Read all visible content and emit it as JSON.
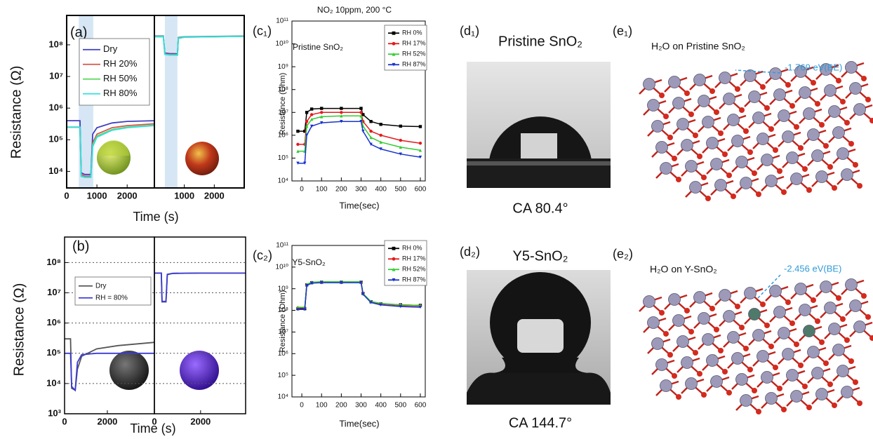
{
  "chart_data": [
    {
      "type": "line",
      "label": "(a)",
      "ylabel": "Resistance (Ω)",
      "xlabel": "Time (s)",
      "log_y": true,
      "ylim": [
        3000,
        850000000
      ],
      "yticks": [
        {
          "value": 10000,
          "label": "10⁴"
        },
        {
          "value": 100000,
          "label": "10⁵"
        },
        {
          "value": 1000000,
          "label": "10⁶"
        },
        {
          "value": 10000000,
          "label": "10⁷"
        },
        {
          "value": 100000000,
          "label": "10⁸"
        }
      ],
      "grid": false,
      "legend": "upper left",
      "series": [
        {
          "name": "Dry",
          "color": "#3f3fbf"
        },
        {
          "name": "RH 20%",
          "color": "#d9534f"
        },
        {
          "name": "RH 50%",
          "color": "#5cd65c"
        },
        {
          "name": "RH 80%",
          "color": "#33e0e0"
        }
      ],
      "subplots": [
        {
          "xlim": [
            0,
            2900
          ],
          "xticks": [
            0,
            1000,
            2000
          ],
          "shade": [
            400,
            880
          ],
          "x": [
            0,
            440,
            480,
            600,
            800,
            860,
            1000,
            1500,
            2000,
            2900
          ],
          "series": [
            {
              "values": [
                400000,
                400000,
                9000,
                8000,
                8000,
                150000,
                240000,
                340000,
                380000,
                400000
              ]
            },
            {
              "values": [
                250000,
                250000,
                8000,
                7000,
                7000,
                80000,
                150000,
                240000,
                280000,
                320000
              ]
            },
            {
              "values": [
                250000,
                250000,
                7000,
                6500,
                6500,
                70000,
                130000,
                210000,
                250000,
                290000
              ]
            },
            {
              "values": [
                250000,
                250000,
                7000,
                6500,
                6500,
                60000,
                120000,
                200000,
                240000,
                280000
              ]
            }
          ]
        },
        {
          "xlim": [
            0,
            3000
          ],
          "xticks": [
            1000,
            2000
          ],
          "shade": [
            350,
            770
          ],
          "x": [
            0,
            300,
            350,
            500,
            770,
            800,
            1000,
            2000,
            3000
          ],
          "series": [
            {
              "values": [
                190000000,
                190000000,
                55000000,
                53000000,
                52000000,
                170000000,
                180000000,
                185000000,
                190000000
              ]
            },
            {
              "values": [
                180000000,
                180000000,
                52000000,
                50000000,
                50000000,
                160000000,
                175000000,
                180000000,
                185000000
              ]
            },
            {
              "values": [
                185000000,
                185000000,
                50000000,
                48000000,
                48000000,
                165000000,
                178000000,
                182000000,
                188000000
              ]
            },
            {
              "values": [
                180000000,
                180000000,
                50000000,
                48000000,
                47000000,
                160000000,
                175000000,
                180000000,
                185000000
              ]
            }
          ]
        }
      ]
    },
    {
      "type": "line",
      "label": "(b)",
      "ylabel": "Resistance (Ω)",
      "xlabel": "Time (s)",
      "log_y": true,
      "ylim": [
        1000,
        700000000
      ],
      "yticks": [
        {
          "value": 1000,
          "label": "10³"
        },
        {
          "value": 10000,
          "label": "10⁴"
        },
        {
          "value": 100000,
          "label": "10⁵"
        },
        {
          "value": 1000000,
          "label": "10⁶"
        },
        {
          "value": 10000000,
          "label": "10⁷"
        },
        {
          "value": 100000000,
          "label": "10⁸"
        }
      ],
      "grid": true,
      "legend": "upper left",
      "series": [
        {
          "name": "Dry",
          "color": "#555555"
        },
        {
          "name": "RH = 80%",
          "color": "#3b3bd6"
        }
      ],
      "subplots": [
        {
          "xlim": [
            0,
            4200
          ],
          "xticks": [
            0,
            2000
          ],
          "x": [
            0,
            280,
            330,
            500,
            600,
            800,
            1500,
            2500,
            4200
          ],
          "series": [
            {
              "values": [
                300000,
                300000,
                7000,
                6000,
                30000,
                80000,
                140000,
                180000,
                230000
              ]
            },
            {
              "values": [
                100000,
                100000,
                8000,
                6000,
                50000,
                90000,
                100000,
                100000,
                100000
              ]
            }
          ]
        },
        {
          "xlim": [
            0,
            3950
          ],
          "xticks": [
            0,
            2000
          ],
          "x": [
            0,
            300,
            330,
            500,
            560,
            800,
            2000,
            3950
          ],
          "series": [
            {
              "values": [
                45000000,
                45000000,
                5000000,
                5000000,
                40000000,
                44000000,
                45000000,
                45000000
              ]
            },
            {
              "values": [
                45000000,
                45000000,
                5200000,
                5200000,
                41000000,
                44000000,
                45000000,
                45000000
              ]
            }
          ]
        }
      ]
    },
    {
      "type": "line",
      "label": "(c₁)",
      "title": "NO₂ 10ppm, 200 °C",
      "annotation": "Pristine SnO₂",
      "ylabel": "Resistance (Ohm)",
      "xlabel": "Time(sec)",
      "log_y": true,
      "markers": true,
      "ylim": [
        10000,
        100000000000
      ],
      "yticks": [
        {
          "value": 10000,
          "label": "10⁴"
        },
        {
          "value": 100000,
          "label": "10⁵"
        },
        {
          "value": 1000000,
          "label": "10⁶"
        },
        {
          "value": 10000000,
          "label": "10⁷"
        },
        {
          "value": 100000000,
          "label": "10⁸"
        },
        {
          "value": 1000000000,
          "label": "10⁹"
        },
        {
          "value": 10000000000,
          "label": "10¹⁰"
        },
        {
          "value": 100000000000,
          "label": "10¹¹"
        }
      ],
      "xlim": [
        -50,
        625
      ],
      "xticks": [
        0,
        100,
        200,
        300,
        400,
        500,
        600
      ],
      "grid": false,
      "legend": "upper right",
      "x": [
        -20,
        15,
        25,
        50,
        100,
        200,
        300,
        310,
        350,
        400,
        500,
        600
      ],
      "series": [
        {
          "name": "RH 0%",
          "color": "#000000",
          "marker": "square",
          "values": [
            1500000,
            1500000,
            10000000,
            14000000,
            15000000,
            15000000,
            15000000,
            8000000,
            4000000,
            3000000,
            2500000,
            2400000
          ]
        },
        {
          "name": "RH 17%",
          "color": "#e41a1c",
          "marker": "circle",
          "values": [
            400000,
            400000,
            4000000,
            8000000,
            10000000,
            10000000,
            10000000,
            4000000,
            1500000,
            1000000,
            600000,
            450000
          ]
        },
        {
          "name": "RH 52%",
          "color": "#33cc33",
          "marker": "triangle-up",
          "values": [
            200000,
            200000,
            2500000,
            5000000,
            6500000,
            7000000,
            7000000,
            2500000,
            800000,
            500000,
            300000,
            220000
          ]
        },
        {
          "name": "RH 87%",
          "color": "#1a33cc",
          "marker": "triangle-down",
          "values": [
            60000,
            60000,
            1000000,
            2500000,
            3500000,
            4000000,
            4000000,
            1500000,
            400000,
            250000,
            150000,
            110000
          ]
        }
      ]
    },
    {
      "type": "line",
      "label": "(c₂)",
      "annotation": "Y5-SnO₂",
      "ylabel": "Resistance (Ohm)",
      "xlabel": "Time(sec)",
      "log_y": true,
      "markers": true,
      "ylim": [
        10000,
        100000000000
      ],
      "yticks": [
        {
          "value": 10000,
          "label": "10⁴"
        },
        {
          "value": 100000,
          "label": "10⁵"
        },
        {
          "value": 1000000,
          "label": "10⁶"
        },
        {
          "value": 10000000,
          "label": "10⁷"
        },
        {
          "value": 100000000,
          "label": "10⁸"
        },
        {
          "value": 1000000000,
          "label": "10⁹"
        },
        {
          "value": 10000000000,
          "label": "10¹⁰"
        },
        {
          "value": 100000000000,
          "label": "10¹¹"
        }
      ],
      "xlim": [
        -50,
        625
      ],
      "xticks": [
        0,
        100,
        200,
        300,
        400,
        500,
        600
      ],
      "grid": false,
      "legend": "upper right",
      "x": [
        -20,
        15,
        25,
        50,
        100,
        200,
        300,
        310,
        350,
        400,
        500,
        600
      ],
      "series": [
        {
          "name": "RH 0%",
          "color": "#000000",
          "marker": "square",
          "values": [
            120000000,
            120000000,
            1500000000,
            1900000000,
            2000000000,
            2000000000,
            2000000000,
            600000000,
            250000000,
            200000000,
            180000000,
            170000000
          ]
        },
        {
          "name": "RH 17%",
          "color": "#e41a1c",
          "marker": "circle",
          "values": [
            130000000,
            130000000,
            1500000000,
            1900000000,
            2000000000,
            2000000000,
            2000000000,
            600000000,
            250000000,
            200000000,
            170000000,
            160000000
          ]
        },
        {
          "name": "RH 52%",
          "color": "#33cc33",
          "marker": "triangle-up",
          "values": [
            140000000,
            140000000,
            1600000000,
            2000000000,
            2100000000,
            2100000000,
            2100000000,
            600000000,
            260000000,
            210000000,
            180000000,
            170000000
          ]
        },
        {
          "name": "RH 87%",
          "color": "#1a33cc",
          "marker": "triangle-down",
          "values": [
            110000000,
            110000000,
            1400000000,
            1800000000,
            1900000000,
            1900000000,
            1900000000,
            550000000,
            230000000,
            180000000,
            150000000,
            140000000
          ]
        }
      ]
    }
  ],
  "photos": [
    {
      "label": "(d₁)",
      "title": "Pristine SnO₂",
      "caption": "CA 80.4°"
    },
    {
      "label": "(d₂)",
      "title": "Y5-SnO₂",
      "caption": "CA 144.7°"
    }
  ],
  "models": [
    {
      "label": "(e₁)",
      "title": "H₂O on Pristine SnO₂",
      "energy": "-1.769 eV(BE)"
    },
    {
      "label": "(e₂)",
      "title": "H₂O on Y-SnO₂",
      "energy": "-2.456 eV(BE)"
    }
  ]
}
